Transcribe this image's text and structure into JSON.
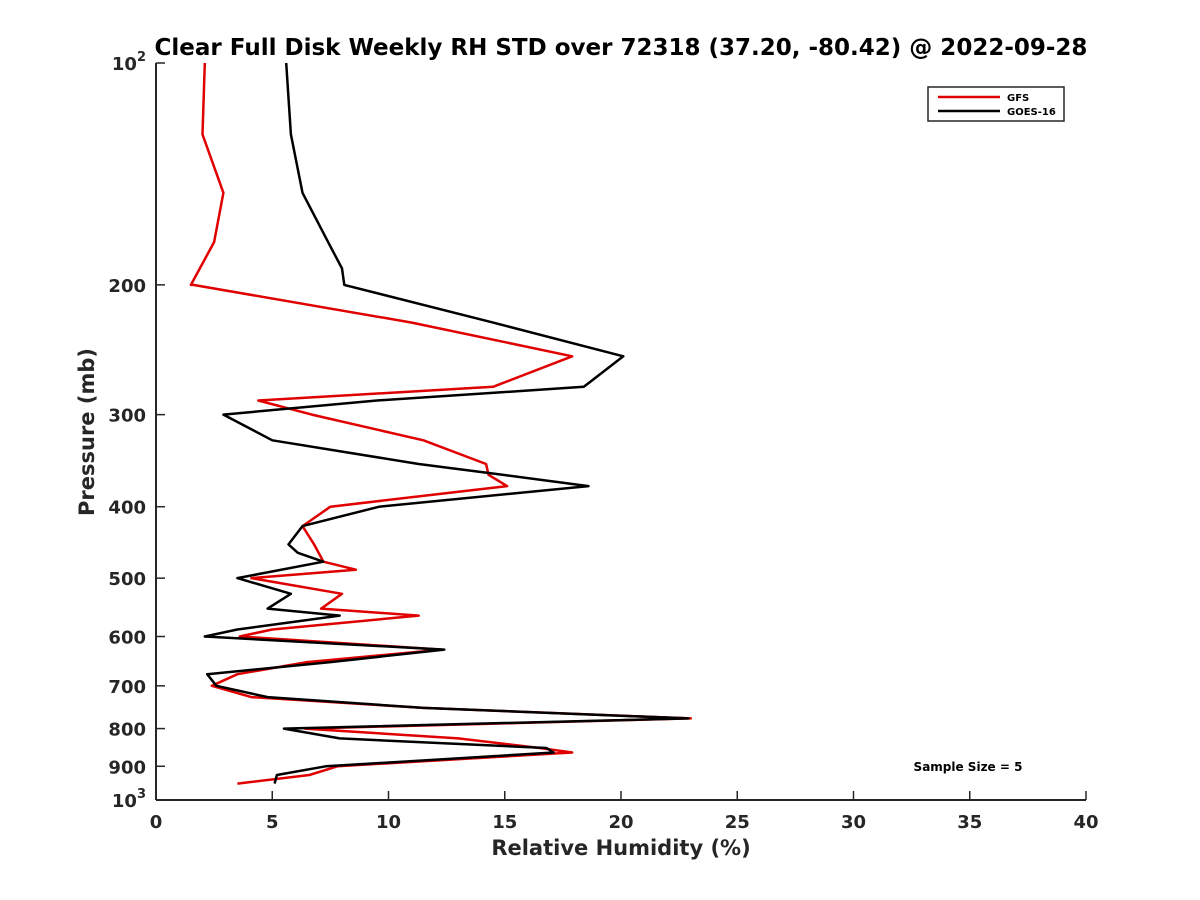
{
  "chart_data": {
    "type": "line",
    "title": "Clear Full Disk Weekly RH STD over 72318 (37.20, -80.42) @ 2022-09-28",
    "xlabel": "Relative Humidity (%)",
    "ylabel": "Pressure (mb)",
    "xlim": [
      0,
      40
    ],
    "ylim": [
      100,
      1000
    ],
    "y_scale": "log",
    "y_reversed": true,
    "x_ticks": [
      0,
      5,
      10,
      15,
      20,
      25,
      30,
      35,
      40
    ],
    "x_tick_labels": [
      "0",
      "5",
      "10",
      "15",
      "20",
      "25",
      "30",
      "35",
      "40"
    ],
    "y_ticks": [
      100,
      200,
      300,
      400,
      500,
      600,
      700,
      800,
      900,
      1000
    ],
    "y_tick_labels": [
      {
        "base": "10",
        "sup": "2"
      },
      {
        "base": "200",
        "sup": ""
      },
      {
        "base": "300",
        "sup": ""
      },
      {
        "base": "400",
        "sup": ""
      },
      {
        "base": "500",
        "sup": ""
      },
      {
        "base": "600",
        "sup": ""
      },
      {
        "base": "700",
        "sup": ""
      },
      {
        "base": "800",
        "sup": ""
      },
      {
        "base": "900",
        "sup": ""
      },
      {
        "base": "10",
        "sup": "3"
      }
    ],
    "grid": false,
    "legend_position": "top-right",
    "annotation": "Sample Size = 5",
    "series": [
      {
        "name": "GFS",
        "color": "#e00000",
        "points": [
          [
            2.1,
            100
          ],
          [
            2.0,
            125
          ],
          [
            2.9,
            150
          ],
          [
            2.5,
            175
          ],
          [
            1.5,
            200
          ],
          [
            1.6,
            200
          ],
          [
            11.0,
            225
          ],
          [
            17.9,
            250
          ],
          [
            14.5,
            275
          ],
          [
            4.4,
            287
          ],
          [
            6.7,
            300
          ],
          [
            11.5,
            325
          ],
          [
            14.2,
            350
          ],
          [
            14.3,
            362
          ],
          [
            15.1,
            375
          ],
          [
            7.5,
            400
          ],
          [
            6.3,
            425
          ],
          [
            6.8,
            450
          ],
          [
            7.2,
            475
          ],
          [
            8.6,
            487
          ],
          [
            4.1,
            500
          ],
          [
            8.0,
            525
          ],
          [
            7.1,
            550
          ],
          [
            11.3,
            562
          ],
          [
            5.0,
            587
          ],
          [
            3.6,
            600
          ],
          [
            12.3,
            625
          ],
          [
            6.5,
            650
          ],
          [
            3.5,
            675
          ],
          [
            2.4,
            700
          ],
          [
            4.1,
            725
          ],
          [
            11.5,
            750
          ],
          [
            23.0,
            775
          ],
          [
            6.4,
            800
          ],
          [
            13.0,
            825
          ],
          [
            16.5,
            850
          ],
          [
            17.9,
            862
          ],
          [
            7.8,
            900
          ],
          [
            6.6,
            925
          ],
          [
            3.5,
            950
          ]
        ]
      },
      {
        "name": "GOES-16",
        "color": "#000000",
        "points": [
          [
            5.6,
            100
          ],
          [
            5.8,
            125
          ],
          [
            6.3,
            150
          ],
          [
            7.4,
            175
          ],
          [
            8.0,
            190
          ],
          [
            8.1,
            200
          ],
          [
            14.5,
            225
          ],
          [
            20.1,
            250
          ],
          [
            18.4,
            275
          ],
          [
            9.5,
            287
          ],
          [
            2.9,
            300
          ],
          [
            5.0,
            325
          ],
          [
            11.3,
            350
          ],
          [
            14.9,
            362
          ],
          [
            18.6,
            375
          ],
          [
            9.6,
            400
          ],
          [
            6.3,
            425
          ],
          [
            5.7,
            450
          ],
          [
            6.1,
            462
          ],
          [
            7.2,
            475
          ],
          [
            3.5,
            500
          ],
          [
            5.8,
            525
          ],
          [
            4.8,
            550
          ],
          [
            7.9,
            562
          ],
          [
            3.5,
            587
          ],
          [
            2.1,
            600
          ],
          [
            12.4,
            625
          ],
          [
            7.5,
            650
          ],
          [
            2.2,
            675
          ],
          [
            2.6,
            700
          ],
          [
            4.8,
            725
          ],
          [
            11.5,
            750
          ],
          [
            22.9,
            775
          ],
          [
            5.5,
            800
          ],
          [
            7.9,
            825
          ],
          [
            16.8,
            850
          ],
          [
            17.1,
            862
          ],
          [
            7.3,
            900
          ],
          [
            5.2,
            925
          ],
          [
            5.1,
            950
          ]
        ]
      }
    ]
  }
}
